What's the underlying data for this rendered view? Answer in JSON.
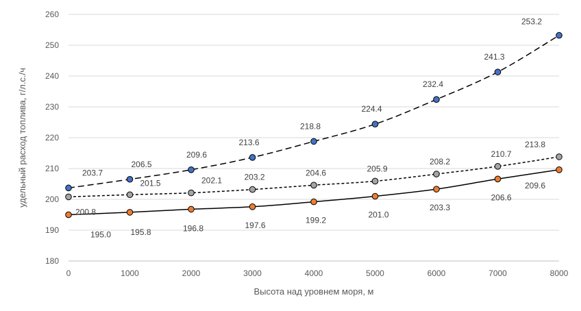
{
  "chart_data": {
    "type": "line",
    "title": "",
    "xlabel": "Высота над уровнем моря, м",
    "ylabel": "удельный расход топлива, г/л.с./ч",
    "x": [
      0,
      1000,
      2000,
      3000,
      4000,
      5000,
      6000,
      7000,
      8000
    ],
    "x_ticks": [
      "0",
      "1000",
      "2000",
      "3000",
      "4000",
      "5000",
      "6000",
      "7000",
      "8000"
    ],
    "xlim": [
      0,
      8000
    ],
    "ylim": [
      180,
      260
    ],
    "y_ticks": [
      "180",
      "190",
      "200",
      "210",
      "220",
      "230",
      "240",
      "250",
      "260"
    ],
    "grid": "horizontal",
    "legend": "none",
    "series": [
      {
        "line_style": "long-dash",
        "marker_color": "#4472C4",
        "values": [
          203.7,
          206.5,
          209.6,
          213.6,
          218.8,
          224.4,
          232.4,
          241.3,
          253.2
        ],
        "labels": [
          "203.7",
          "206.5",
          "209.6",
          "213.6",
          "218.8",
          "224.4",
          "232.4",
          "241.3",
          "253.2"
        ]
      },
      {
        "line_style": "short-dash",
        "marker_color": "#A5A5A5",
        "values": [
          200.8,
          201.5,
          202.1,
          203.2,
          204.6,
          205.9,
          208.2,
          210.7,
          213.8
        ],
        "labels": [
          "200.8",
          "201.5",
          "202.1",
          "203.2",
          "204.6",
          "205.9",
          "208.2",
          "210.7",
          "213.8"
        ]
      },
      {
        "line_style": "solid",
        "marker_color": "#ED7D31",
        "values": [
          195.0,
          195.8,
          196.8,
          197.6,
          199.2,
          201.0,
          203.3,
          206.6,
          209.6
        ],
        "labels": [
          "195.0",
          "195.8",
          "196.8",
          "197.6",
          "199.2",
          "201.0",
          "203.3",
          "206.6",
          "209.6"
        ]
      }
    ]
  }
}
